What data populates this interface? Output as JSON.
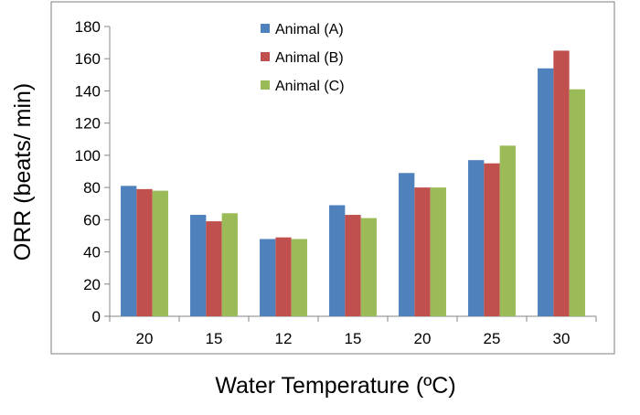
{
  "chart_data": {
    "type": "bar",
    "title": "",
    "xlabel": "Water Temperature (ºC)",
    "ylabel": "ORR (beats/ min)",
    "categories": [
      "20",
      "15",
      "12",
      "15",
      "20",
      "25",
      "30"
    ],
    "series": [
      {
        "name": "Animal (A)",
        "color": "#4f81bd",
        "values": [
          81,
          63,
          48,
          69,
          89,
          97,
          154
        ]
      },
      {
        "name": "Animal (B)",
        "color": "#c0504d",
        "values": [
          79,
          59,
          49,
          63,
          80,
          95,
          165
        ]
      },
      {
        "name": "Animal (C)",
        "color": "#9bbb59",
        "values": [
          78,
          64,
          48,
          61,
          80,
          106,
          141
        ]
      }
    ],
    "ylim": [
      0,
      180
    ],
    "yticks": [
      "0",
      "20",
      "40",
      "60",
      "80",
      "100",
      "120",
      "140",
      "160",
      "180"
    ],
    "grid": false,
    "legend_position": "top-center"
  }
}
